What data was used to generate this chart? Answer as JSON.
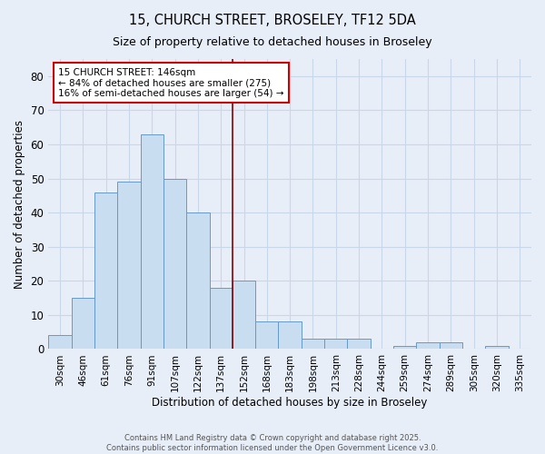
{
  "title": "15, CHURCH STREET, BROSELEY, TF12 5DA",
  "subtitle": "Size of property relative to detached houses in Broseley",
  "xlabel": "Distribution of detached houses by size in Broseley",
  "ylabel": "Number of detached properties",
  "bar_labels": [
    "30sqm",
    "46sqm",
    "61sqm",
    "76sqm",
    "91sqm",
    "107sqm",
    "122sqm",
    "137sqm",
    "152sqm",
    "168sqm",
    "183sqm",
    "198sqm",
    "213sqm",
    "228sqm",
    "244sqm",
    "259sqm",
    "274sqm",
    "289sqm",
    "305sqm",
    "320sqm",
    "335sqm"
  ],
  "bar_values": [
    4,
    15,
    46,
    49,
    63,
    50,
    40,
    18,
    20,
    8,
    8,
    3,
    3,
    3,
    0,
    1,
    2,
    2,
    0,
    1,
    0
  ],
  "bar_color": "#c8ddf0",
  "bar_edge_color": "#6699cc",
  "vline_x": 7.5,
  "vline_color": "#8b0000",
  "annotation_title": "15 CHURCH STREET: 146sqm",
  "annotation_line1": "← 84% of detached houses are smaller (275)",
  "annotation_line2": "16% of semi-detached houses are larger (54) →",
  "annotation_box_facecolor": "#ffffff",
  "annotation_box_edgecolor": "#cc0000",
  "ylim": [
    0,
    85
  ],
  "yticks": [
    0,
    10,
    20,
    30,
    40,
    50,
    60,
    70,
    80
  ],
  "grid_color": "#c8d8e8",
  "background_color": "#e8eef8",
  "figsize": [
    6.0,
    5.0
  ],
  "dpi": 100,
  "footer_line1": "Contains HM Land Registry data © Crown copyright and database right 2025.",
  "footer_line2": "Contains public sector information licensed under the Open Government Licence v3.0."
}
